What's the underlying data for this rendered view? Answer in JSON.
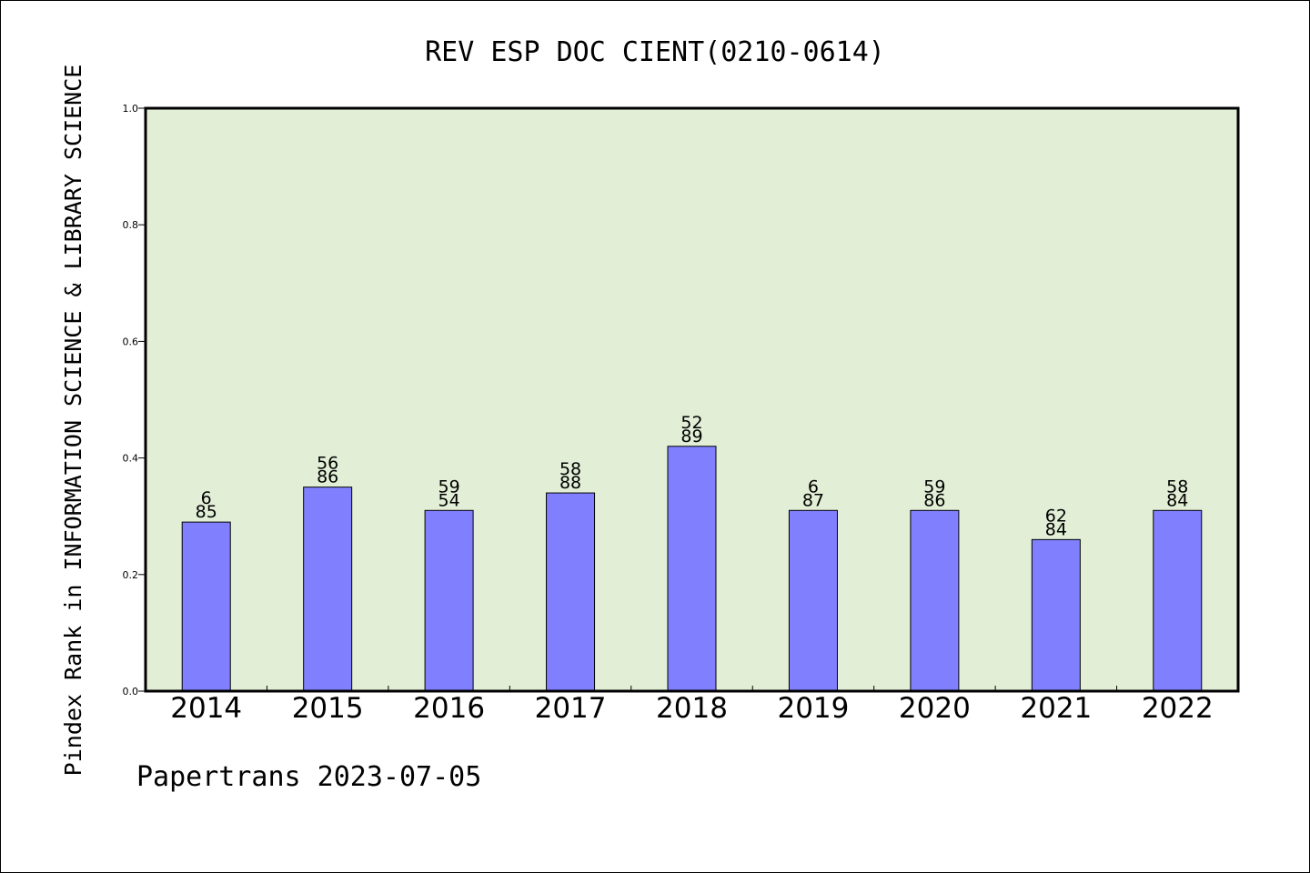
{
  "colors": {
    "plot_background": "#e2efd6",
    "bar_fill": "#8080ff",
    "bar_stroke": "#000000",
    "axis": "#000000",
    "text": "#000000"
  },
  "footer": {
    "text": "Papertrans 2023-07-05"
  },
  "chart_data": {
    "type": "bar",
    "title": "REV ESP DOC CIENT(0210-0614)",
    "xlabel": "",
    "ylabel": "Pindex Rank in INFORMATION SCIENCE & LIBRARY SCIENCE",
    "ylim": [
      0,
      1.0
    ],
    "yticks": [
      "0.0",
      "0.2",
      "0.4",
      "0.6",
      "0.8",
      "1.0"
    ],
    "grid": false,
    "legend": "none",
    "categories": [
      "2014",
      "2015",
      "2016",
      "2017",
      "2018",
      "2019",
      "2020",
      "2021",
      "2022"
    ],
    "values": [
      0.29,
      0.35,
      0.31,
      0.34,
      0.42,
      0.31,
      0.31,
      0.26,
      0.31
    ],
    "labels_top": [
      "6",
      "56",
      "59",
      "58",
      "52",
      "6",
      "59",
      "62",
      "58"
    ],
    "labels_bottom": [
      "85",
      "86",
      "54",
      "88",
      "89",
      "87",
      "86",
      "84",
      "84"
    ]
  }
}
